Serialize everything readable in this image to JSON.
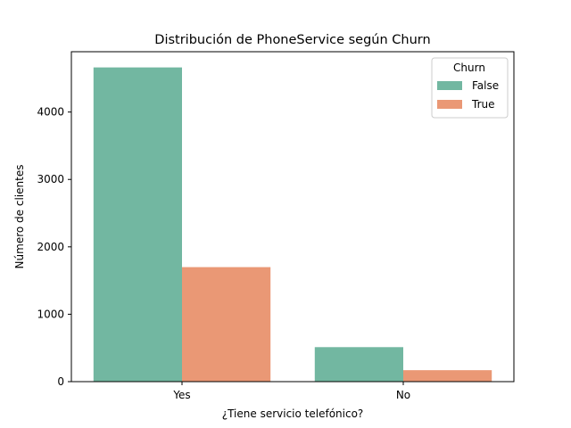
{
  "chart_data": {
    "type": "bar",
    "title": "Distribución de PhoneService según Churn",
    "xlabel": "¿Tiene servicio telefónico?",
    "ylabel": "Número de clientes",
    "categories": [
      "Yes",
      "No"
    ],
    "series": [
      {
        "name": "False",
        "values": [
          4662,
          512
        ],
        "color": "#72b7a1"
      },
      {
        "name": "True",
        "values": [
          1699,
          170
        ],
        "color": "#ea9875"
      }
    ],
    "ylim": [
      0,
      4895
    ],
    "yticks": [
      0,
      1000,
      2000,
      3000,
      4000
    ],
    "grid": false,
    "legend": {
      "title": "Churn",
      "position": "top-right"
    }
  }
}
